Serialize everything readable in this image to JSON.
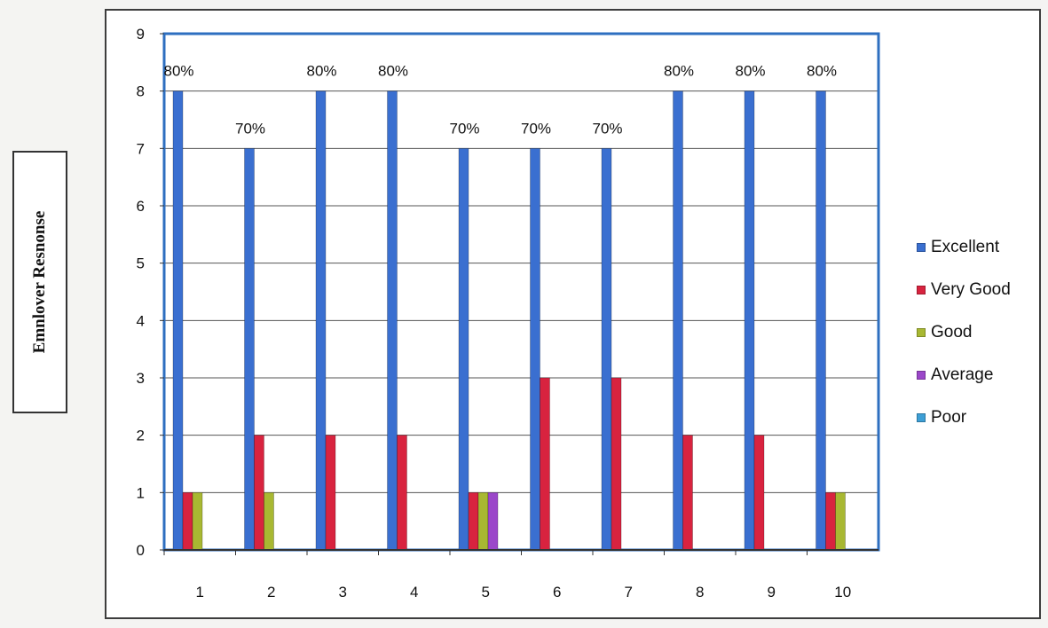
{
  "chart_data": {
    "type": "bar",
    "ylabel": "Emnlover Resnonse",
    "xlabel": "",
    "title": "",
    "categories": [
      "1",
      "2",
      "3",
      "4",
      "5",
      "6",
      "7",
      "8",
      "9",
      "10"
    ],
    "ylim": [
      0,
      9
    ],
    "yticks": [
      "0",
      "1",
      "2",
      "3",
      "4",
      "5",
      "6",
      "7",
      "8",
      "9"
    ],
    "grid": "horizontal",
    "legend_position": "right",
    "series": [
      {
        "name": "Excellent",
        "color": "#3a6fd0",
        "values": [
          8,
          7,
          8,
          8,
          7,
          7,
          7,
          8,
          8,
          8
        ]
      },
      {
        "name": "Very Good",
        "color": "#d8233f",
        "values": [
          1,
          2,
          2,
          2,
          1,
          3,
          3,
          2,
          2,
          1
        ]
      },
      {
        "name": "Good",
        "color": "#a8b832",
        "values": [
          1,
          1,
          0,
          0,
          1,
          0,
          0,
          0,
          0,
          1
        ]
      },
      {
        "name": "Average",
        "color": "#9b47c9",
        "values": [
          0,
          0,
          0,
          0,
          1,
          0,
          0,
          0,
          0,
          0
        ]
      },
      {
        "name": "Poor",
        "color": "#3d9fd6",
        "values": [
          0,
          0,
          0,
          0,
          0,
          0,
          0,
          0,
          0,
          0
        ]
      }
    ],
    "data_labels": [
      "80%",
      "70%",
      "80%",
      "80%",
      "70%",
      "70%",
      "70%",
      "80%",
      "80%",
      "80%"
    ]
  }
}
